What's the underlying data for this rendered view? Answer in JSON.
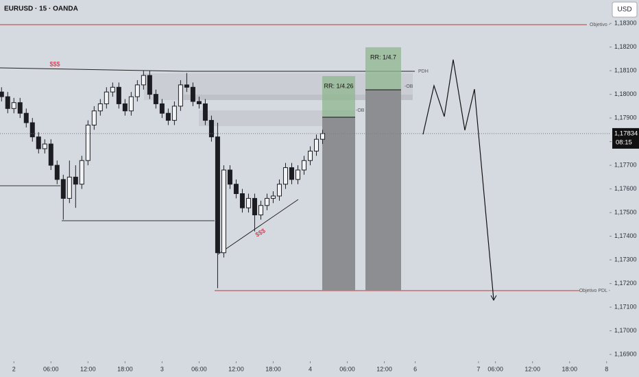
{
  "header": {
    "symbol": "EURUSD · 15 · OANDA",
    "currency": "USD"
  },
  "chart_data": {
    "type": "candlestick",
    "color": "#1c1d22",
    "x": [
      -8,
      -4,
      0,
      4,
      8,
      12,
      16,
      20,
      24,
      28,
      32,
      36,
      40,
      44,
      48,
      52,
      56,
      60,
      64,
      68,
      72,
      76,
      80,
      84,
      88,
      92,
      96,
      100,
      104,
      108,
      112,
      116,
      120,
      124,
      128,
      132,
      136,
      140,
      144,
      148,
      152,
      156,
      160,
      164,
      168,
      172,
      176,
      180,
      184,
      188,
      192,
      196,
      200
    ],
    "open": [
      1.1801,
      1.1799,
      1.1794,
      1.17965,
      1.1792,
      1.1788,
      1.1782,
      1.1777,
      1.1779,
      1.177,
      1.1764,
      1.1756,
      1.1765,
      1.1762,
      1.1772,
      1.1787,
      1.1793,
      1.1796,
      1.1801,
      1.1803,
      1.1796,
      1.1793,
      1.1799,
      1.1804,
      1.1808,
      1.18,
      1.1796,
      1.1792,
      1.1789,
      1.1795,
      1.1804,
      1.1803,
      1.1797,
      1.1796,
      1.1789,
      1.1782,
      1.1733,
      1.1768,
      1.1762,
      1.1758,
      1.1752,
      1.1756,
      1.1749,
      1.1753,
      1.1756,
      1.1757,
      1.1762,
      1.1769,
      1.1764,
      1.1768,
      1.1772,
      1.1776,
      1.1781
    ],
    "high": [
      1.1803,
      1.1801,
      1.17985,
      1.17985,
      1.1794,
      1.179,
      1.1784,
      1.1781,
      1.1781,
      1.1772,
      1.1766,
      1.1772,
      1.177,
      1.1774,
      1.1789,
      1.1795,
      1.1798,
      1.1803,
      1.1805,
      1.1805,
      1.1798,
      1.1801,
      1.1806,
      1.181,
      1.181,
      1.1802,
      1.1798,
      1.1794,
      1.1797,
      1.1806,
      1.1809,
      1.1805,
      1.1799,
      1.1798,
      1.1791,
      1.1788,
      1.177,
      1.177,
      1.1764,
      1.176,
      1.1758,
      1.1758,
      1.1755,
      1.1758,
      1.1759,
      1.1764,
      1.1771,
      1.1771,
      1.177,
      1.1774,
      1.1778,
      1.1783,
      1.1785
    ],
    "low": [
      1.1797,
      1.1792,
      1.1792,
      1.179,
      1.1786,
      1.178,
      1.1775,
      1.1775,
      1.1768,
      1.1762,
      1.1747,
      1.1754,
      1.1752,
      1.176,
      1.177,
      1.1785,
      1.1791,
      1.1794,
      1.1799,
      1.1794,
      1.1791,
      1.1791,
      1.1797,
      1.1802,
      1.1798,
      1.1794,
      1.179,
      1.1787,
      1.1787,
      1.1793,
      1.1801,
      1.1795,
      1.1794,
      1.1787,
      1.178,
      1.1718,
      1.1731,
      1.176,
      1.1756,
      1.175,
      1.175,
      1.1742,
      1.1747,
      1.1751,
      1.1754,
      1.1755,
      1.176,
      1.1762,
      1.1762,
      1.1766,
      1.177,
      1.1774,
      1.1779
    ],
    "close": [
      1.1799,
      1.1794,
      1.17965,
      1.1792,
      1.1788,
      1.1782,
      1.1777,
      1.1779,
      1.177,
      1.1764,
      1.1756,
      1.1765,
      1.1762,
      1.1772,
      1.1787,
      1.1793,
      1.1796,
      1.1801,
      1.1803,
      1.1796,
      1.1793,
      1.1799,
      1.1804,
      1.1808,
      1.18,
      1.1796,
      1.1792,
      1.1789,
      1.1795,
      1.1804,
      1.1803,
      1.1797,
      1.1796,
      1.1789,
      1.1782,
      1.1733,
      1.1768,
      1.1762,
      1.1758,
      1.1752,
      1.1756,
      1.1749,
      1.1753,
      1.1756,
      1.1757,
      1.1762,
      1.1769,
      1.1764,
      1.1768,
      1.1772,
      1.1776,
      1.1781,
      1.17834
    ],
    "xlim": [
      -9,
      385
    ],
    "ylim": [
      1.16877,
      1.18399
    ],
    "yticks": [
      {
        "value": 1.183,
        "label": "1,18300"
      },
      {
        "value": 1.182,
        "label": "1,18200"
      },
      {
        "value": 1.181,
        "label": "1,18100"
      },
      {
        "value": 1.18,
        "label": "1,18000"
      },
      {
        "value": 1.179,
        "label": "1,17900"
      },
      {
        "value": 1.178,
        "label": "1,17800"
      },
      {
        "value": 1.177,
        "label": "1,17700"
      },
      {
        "value": 1.176,
        "label": "1,17600"
      },
      {
        "value": 1.175,
        "label": "1,17500"
      },
      {
        "value": 1.174,
        "label": "1,17400"
      },
      {
        "value": 1.173,
        "label": "1,17300"
      },
      {
        "value": 1.172,
        "label": "1,17200"
      },
      {
        "value": 1.171,
        "label": "1,17100"
      },
      {
        "value": 1.17,
        "label": "1,17000"
      },
      {
        "value": 1.169,
        "label": "1,16900"
      }
    ],
    "xticks": [
      {
        "value": 0,
        "label": "2"
      },
      {
        "value": 24,
        "label": "06:00"
      },
      {
        "value": 48,
        "label": "12:00"
      },
      {
        "value": 72,
        "label": "18:00"
      },
      {
        "value": 96,
        "label": "3"
      },
      {
        "value": 120,
        "label": "06:00"
      },
      {
        "value": 144,
        "label": "12:00"
      },
      {
        "value": 168,
        "label": "18:00"
      },
      {
        "value": 192,
        "label": "4"
      },
      {
        "value": 216,
        "label": "06:00"
      },
      {
        "value": 240,
        "label": "12:00"
      },
      {
        "value": 260,
        "label": "6"
      },
      {
        "value": 301,
        "label": "7"
      },
      {
        "value": 312,
        "label": "06:00"
      },
      {
        "value": 336,
        "label": "12:00"
      },
      {
        "value": 360,
        "label": "18:00"
      },
      {
        "value": 384,
        "label": "8"
      }
    ],
    "last_price": {
      "value": 1.17834,
      "label": "1,17834"
    },
    "countdown": "08:15",
    "annotations": {
      "target_top": "Objetivo -",
      "liquidity_top": "$$$",
      "pdh": "PDH",
      "ob_1": "-OB",
      "ob_2": "-OB",
      "rr_1": "RR: 1/4.26",
      "rr_2": "RR: 1/4.7",
      "liquidity_bottom": "$$$",
      "target_pdl": "Objetivo PDL -"
    }
  }
}
